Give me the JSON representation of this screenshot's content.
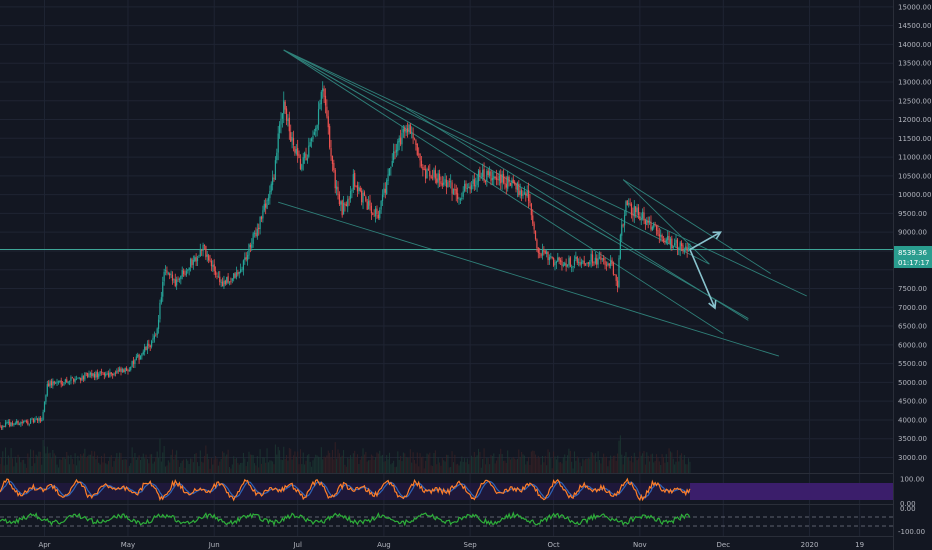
{
  "colors": {
    "background": "#131722",
    "grid": "#1f2433",
    "candle_up": "#26a69a",
    "candle_down": "#ef5350",
    "candle_body": "#c8ccd6",
    "trendline": "#2f7f78",
    "arrow": "#89c3ce",
    "hline": "#3ea597",
    "price_badge": "#2a9d8f",
    "osc_fill": "#3b1e6b",
    "osc_fast": "#ff7f2a",
    "osc_slow": "#2e63b8",
    "mom_line": "#2eae3a",
    "text": "#b2b5be"
  },
  "price_axis": {
    "ticks": [
      "15000.00",
      "14500.00",
      "14000.00",
      "13500.00",
      "13000.00",
      "12500.00",
      "12000.00",
      "11500.00",
      "11000.00",
      "10500.00",
      "10000.00",
      "9500.00",
      "9000.00",
      "8500.00",
      "8000.00",
      "7500.00",
      "7000.00",
      "6500.00",
      "6000.00",
      "5500.00",
      "5000.00",
      "4500.00",
      "4000.00",
      "3500.00",
      "3000.00"
    ],
    "last_price": "8539.36",
    "countdown": "01:17:17"
  },
  "osc_axis": {
    "ticks": [
      "100.00",
      "0.00"
    ]
  },
  "mom_axis": {
    "ticks": [
      "0.00",
      "-100.00"
    ]
  },
  "time_axis": {
    "labels": [
      "Apr",
      "May",
      "Jun",
      "Jul",
      "Aug",
      "Sep",
      "Oct",
      "Nov",
      "Dec",
      "2020",
      "19"
    ]
  },
  "chart_data": {
    "type": "candlestick",
    "symbol_axis": "price",
    "ylim": [
      2800,
      15050
    ],
    "x_range": [
      "2019-03-16",
      "2020-01-31"
    ],
    "grid": true,
    "path_keypoints": [
      [
        "2019-03-16",
        3860
      ],
      [
        "2019-03-31",
        4000
      ],
      [
        "2019-04-02",
        4950
      ],
      [
        "2019-04-15",
        5150
      ],
      [
        "2019-04-30",
        5300
      ],
      [
        "2019-05-04",
        5600
      ],
      [
        "2019-05-11",
        6200
      ],
      [
        "2019-05-14",
        7900
      ],
      [
        "2019-05-18",
        7700
      ],
      [
        "2019-05-26",
        8400
      ],
      [
        "2019-05-28",
        8600
      ],
      [
        "2019-05-31",
        8100
      ],
      [
        "2019-06-04",
        7600
      ],
      [
        "2019-06-10",
        7900
      ],
      [
        "2019-06-16",
        9000
      ],
      [
        "2019-06-22",
        10300
      ],
      [
        "2019-06-26",
        12600
      ],
      [
        "2019-06-28",
        11600
      ],
      [
        "2019-07-02",
        10700
      ],
      [
        "2019-07-07",
        11500
      ],
      [
        "2019-07-10",
        12800
      ],
      [
        "2019-07-14",
        10500
      ],
      [
        "2019-07-17",
        9500
      ],
      [
        "2019-07-21",
        10400
      ],
      [
        "2019-07-25",
        9800
      ],
      [
        "2019-07-30",
        9500
      ],
      [
        "2019-08-06",
        11400
      ],
      [
        "2019-08-10",
        11900
      ],
      [
        "2019-08-15",
        10500
      ],
      [
        "2019-08-20",
        10500
      ],
      [
        "2019-08-28",
        10000
      ],
      [
        "2019-09-04",
        10500
      ],
      [
        "2019-09-14",
        10350
      ],
      [
        "2019-09-22",
        10000
      ],
      [
        "2019-09-25",
        8500
      ],
      [
        "2019-10-02",
        8200
      ],
      [
        "2019-10-08",
        8200
      ],
      [
        "2019-10-15",
        8300
      ],
      [
        "2019-10-22",
        8100
      ],
      [
        "2019-10-24",
        7450
      ],
      [
        "2019-10-25",
        9000
      ],
      [
        "2019-10-27",
        9700
      ],
      [
        "2019-11-04",
        9300
      ],
      [
        "2019-11-08",
        8900
      ],
      [
        "2019-11-15",
        8600
      ],
      [
        "2019-11-19",
        8539
      ]
    ],
    "annotations": {
      "horizontal_level": 8539,
      "projection_up": [
        [
          "2019-11-19",
          8539
        ],
        [
          "2019-11-30",
          9000
        ]
      ],
      "projection_down": [
        [
          "2019-11-19",
          8539
        ],
        [
          "2019-11-28",
          6980
        ]
      ]
    }
  }
}
